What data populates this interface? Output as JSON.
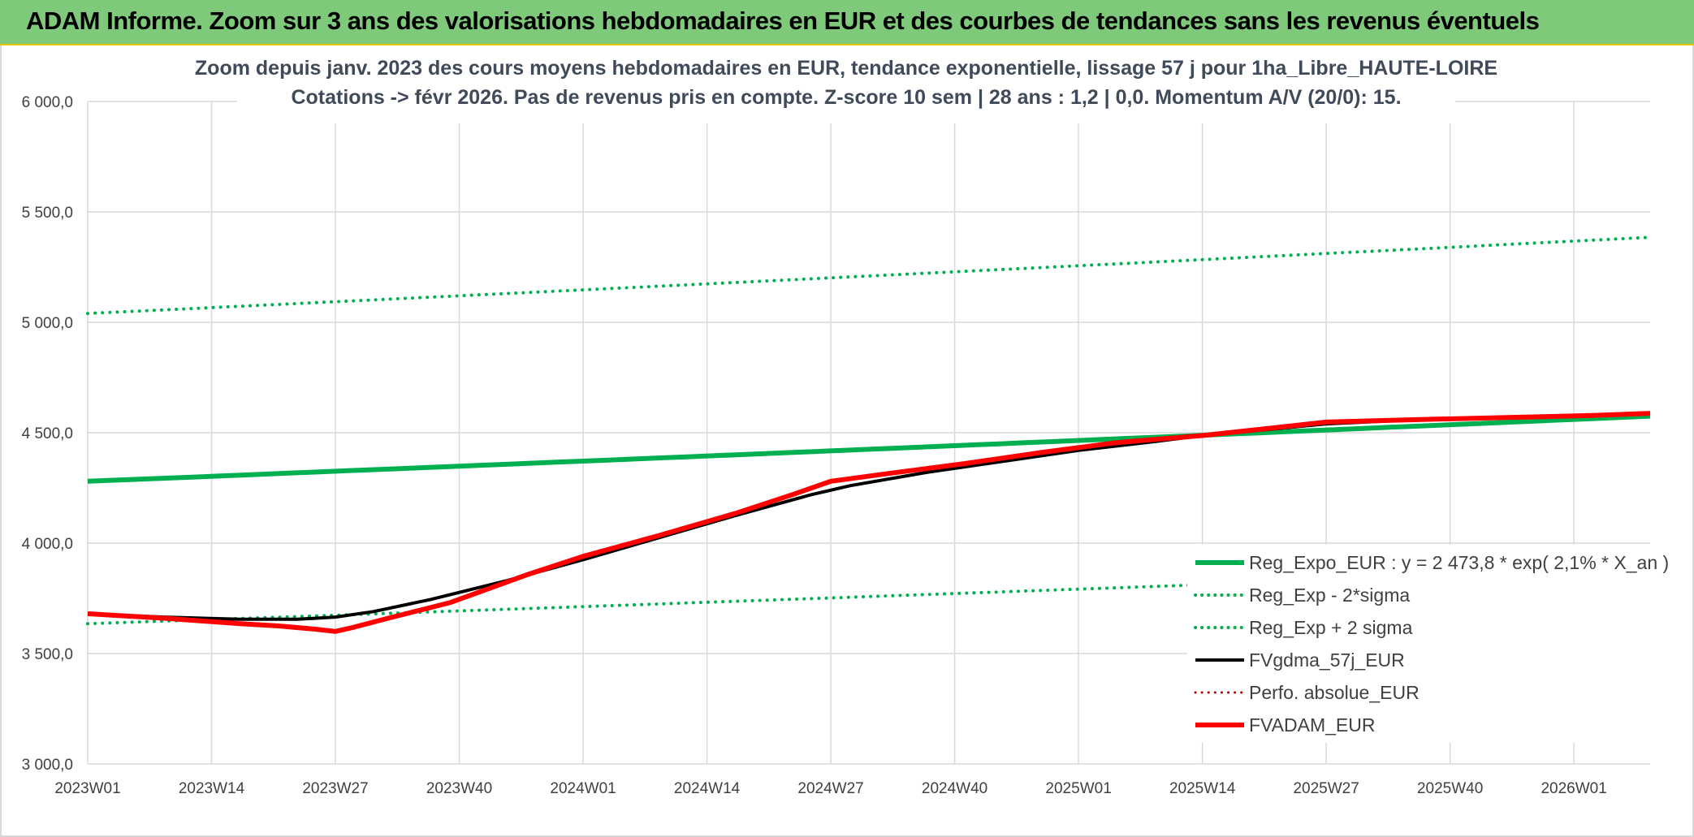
{
  "banner": {
    "title": "ADAM Informe. Zoom sur 3 ans des valorisations hebdomadaires en EUR et des courbes de tendances sans les revenus éventuels"
  },
  "colors": {
    "banner_bg": "#7fc97a",
    "banner_accent": "#e8c200",
    "reg_green": "#00b050",
    "fvgdma_black": "#000000",
    "fvadam_red": "#ff0000",
    "perfo_red": "#c00000"
  },
  "chart_data": {
    "type": "line",
    "title_lines": [
      "Zoom depuis janv. 2023 des cours moyens hebdomadaires en EUR, tendance exponentielle, lissage 57 j pour 1ha_Libre_HAUTE-LOIRE",
      "Cotations -> févr 2026. Pas de revenus pris en compte. Z-score 10 sem | 28 ans : 1,2 | 0,0. Momentum A/V (20/0): 15."
    ],
    "ylim": [
      3000,
      6000
    ],
    "y_ticks": [
      "3 000,0",
      "3 500,0",
      "4 000,0",
      "4 500,0",
      "5 000,0",
      "5 500,0",
      "6 000,0"
    ],
    "y_tick_values": [
      3000,
      3500,
      4000,
      4500,
      5000,
      5500,
      6000
    ],
    "x_ticks": [
      "2023W01",
      "2023W14",
      "2023W27",
      "2023W40",
      "2024W01",
      "2024W14",
      "2024W27",
      "2024W40",
      "2025W01",
      "2025W14",
      "2025W27",
      "2025W40",
      "2026W01"
    ],
    "x_tick_weeks": [
      0,
      13,
      26,
      39,
      52,
      65,
      78,
      91,
      104,
      117,
      130,
      143,
      156
    ],
    "x_range_weeks": [
      0,
      164
    ],
    "grid": true,
    "legend_position": "bottom-right",
    "series": [
      {
        "name": "Reg_Expo_EUR : y = 2 473,8 * exp( 2,1% * X_an )",
        "color": "#00b050",
        "style": "solid",
        "width": 6,
        "x": [
          0,
          164
        ],
        "y": [
          4280,
          4575
        ],
        "curve": "exp"
      },
      {
        "name": "Reg_Exp - 2*sigma",
        "color": "#00b050",
        "style": "dotted",
        "width": 4,
        "x": [
          0,
          164
        ],
        "y": [
          3635,
          3885
        ],
        "curve": "exp"
      },
      {
        "name": "Reg_Exp + 2 sigma",
        "color": "#00b050",
        "style": "dotted",
        "width": 4,
        "x": [
          0,
          164
        ],
        "y": [
          5040,
          5385
        ],
        "curve": "exp"
      },
      {
        "name": "FVgdma_57j_EUR",
        "color": "#000000",
        "style": "solid",
        "width": 4,
        "x": [
          0,
          8,
          16,
          22,
          26,
          30,
          36,
          44,
          52,
          60,
          68,
          76,
          80,
          88,
          96,
          104,
          112,
          117,
          124,
          130,
          140,
          150,
          158,
          164
        ],
        "y": [
          3680,
          3665,
          3655,
          3655,
          3665,
          3690,
          3745,
          3830,
          3925,
          4025,
          4125,
          4220,
          4260,
          4320,
          4370,
          4420,
          4460,
          4487,
          4515,
          4540,
          4560,
          4572,
          4580,
          4585
        ]
      },
      {
        "name": "Perfo. absolue_EUR",
        "color": "#c00000",
        "style": "dotted",
        "width": 3,
        "x": [],
        "y": []
      },
      {
        "name": "FVADAM_EUR",
        "color": "#ff0000",
        "style": "solid",
        "width": 6,
        "x": [
          0,
          8,
          16,
          20,
          24,
          26,
          28,
          32,
          38,
          46,
          52,
          60,
          68,
          74,
          78,
          84,
          92,
          100,
          108,
          117,
          124,
          130,
          140,
          150,
          158,
          164
        ],
        "y": [
          3680,
          3660,
          3635,
          3625,
          3610,
          3600,
          3620,
          3665,
          3730,
          3855,
          3940,
          4035,
          4135,
          4220,
          4280,
          4315,
          4360,
          4410,
          4455,
          4487,
          4520,
          4548,
          4560,
          4570,
          4578,
          4588
        ]
      }
    ]
  }
}
